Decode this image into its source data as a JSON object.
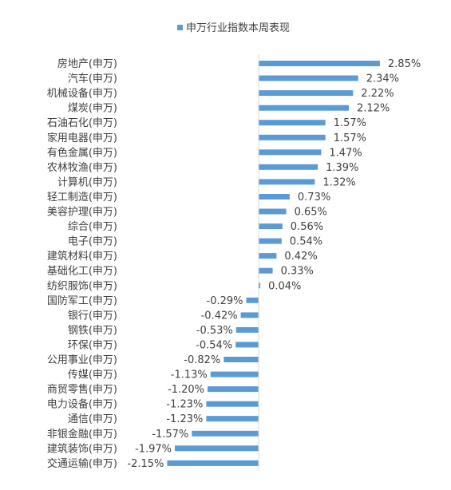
{
  "chart_data": {
    "type": "bar",
    "orientation": "horizontal",
    "legend": {
      "position": "top",
      "label": "申万行业指数本周表现"
    },
    "color": "#5B9BD5",
    "value_suffix": "%",
    "xlim": [
      -2.5,
      3.5
    ],
    "grid": false,
    "categories": [
      "房地产(申万)",
      "汽车(申万)",
      "机械设备(申万)",
      "煤炭(申万)",
      "石油石化(申万)",
      "家用电器(申万)",
      "有色金属(申万)",
      "农林牧渔(申万)",
      "计算机(申万)",
      "轻工制造(申万)",
      "美容护理(申万)",
      "综合(申万)",
      "电子(申万)",
      "建筑材料(申万)",
      "基础化工(申万)",
      "纺织服饰(申万)",
      "国防军工(申万)",
      "银行(申万)",
      "钢铁(申万)",
      "环保(申万)",
      "公用事业(申万)",
      "传媒(申万)",
      "商贸零售(申万)",
      "电力设备(申万)",
      "通信(申万)",
      "非银金融(申万)",
      "建筑装饰(申万)",
      "交通运输(申万)"
    ],
    "values": [
      2.85,
      2.34,
      2.22,
      2.12,
      1.57,
      1.57,
      1.47,
      1.39,
      1.32,
      0.73,
      0.65,
      0.56,
      0.54,
      0.42,
      0.33,
      0.04,
      -0.29,
      -0.42,
      -0.53,
      -0.54,
      -0.82,
      -1.13,
      -1.2,
      -1.23,
      -1.23,
      -1.57,
      -1.97,
      -2.15
    ],
    "data_labels": [
      "2.85%",
      "2.34%",
      "2.22%",
      "2.12%",
      "1.57%",
      "1.57%",
      "1.47%",
      "1.39%",
      "1.32%",
      "0.73%",
      "0.65%",
      "0.56%",
      "0.54%",
      "0.42%",
      "0.33%",
      "0.04%",
      "-0.29%",
      "-0.42%",
      "-0.53%",
      "-0.54%",
      "-0.82%",
      "-1.13%",
      "-1.20%",
      "-1.23%",
      "-1.23%",
      "-1.57%",
      "-1.97%",
      "-2.15%"
    ]
  }
}
